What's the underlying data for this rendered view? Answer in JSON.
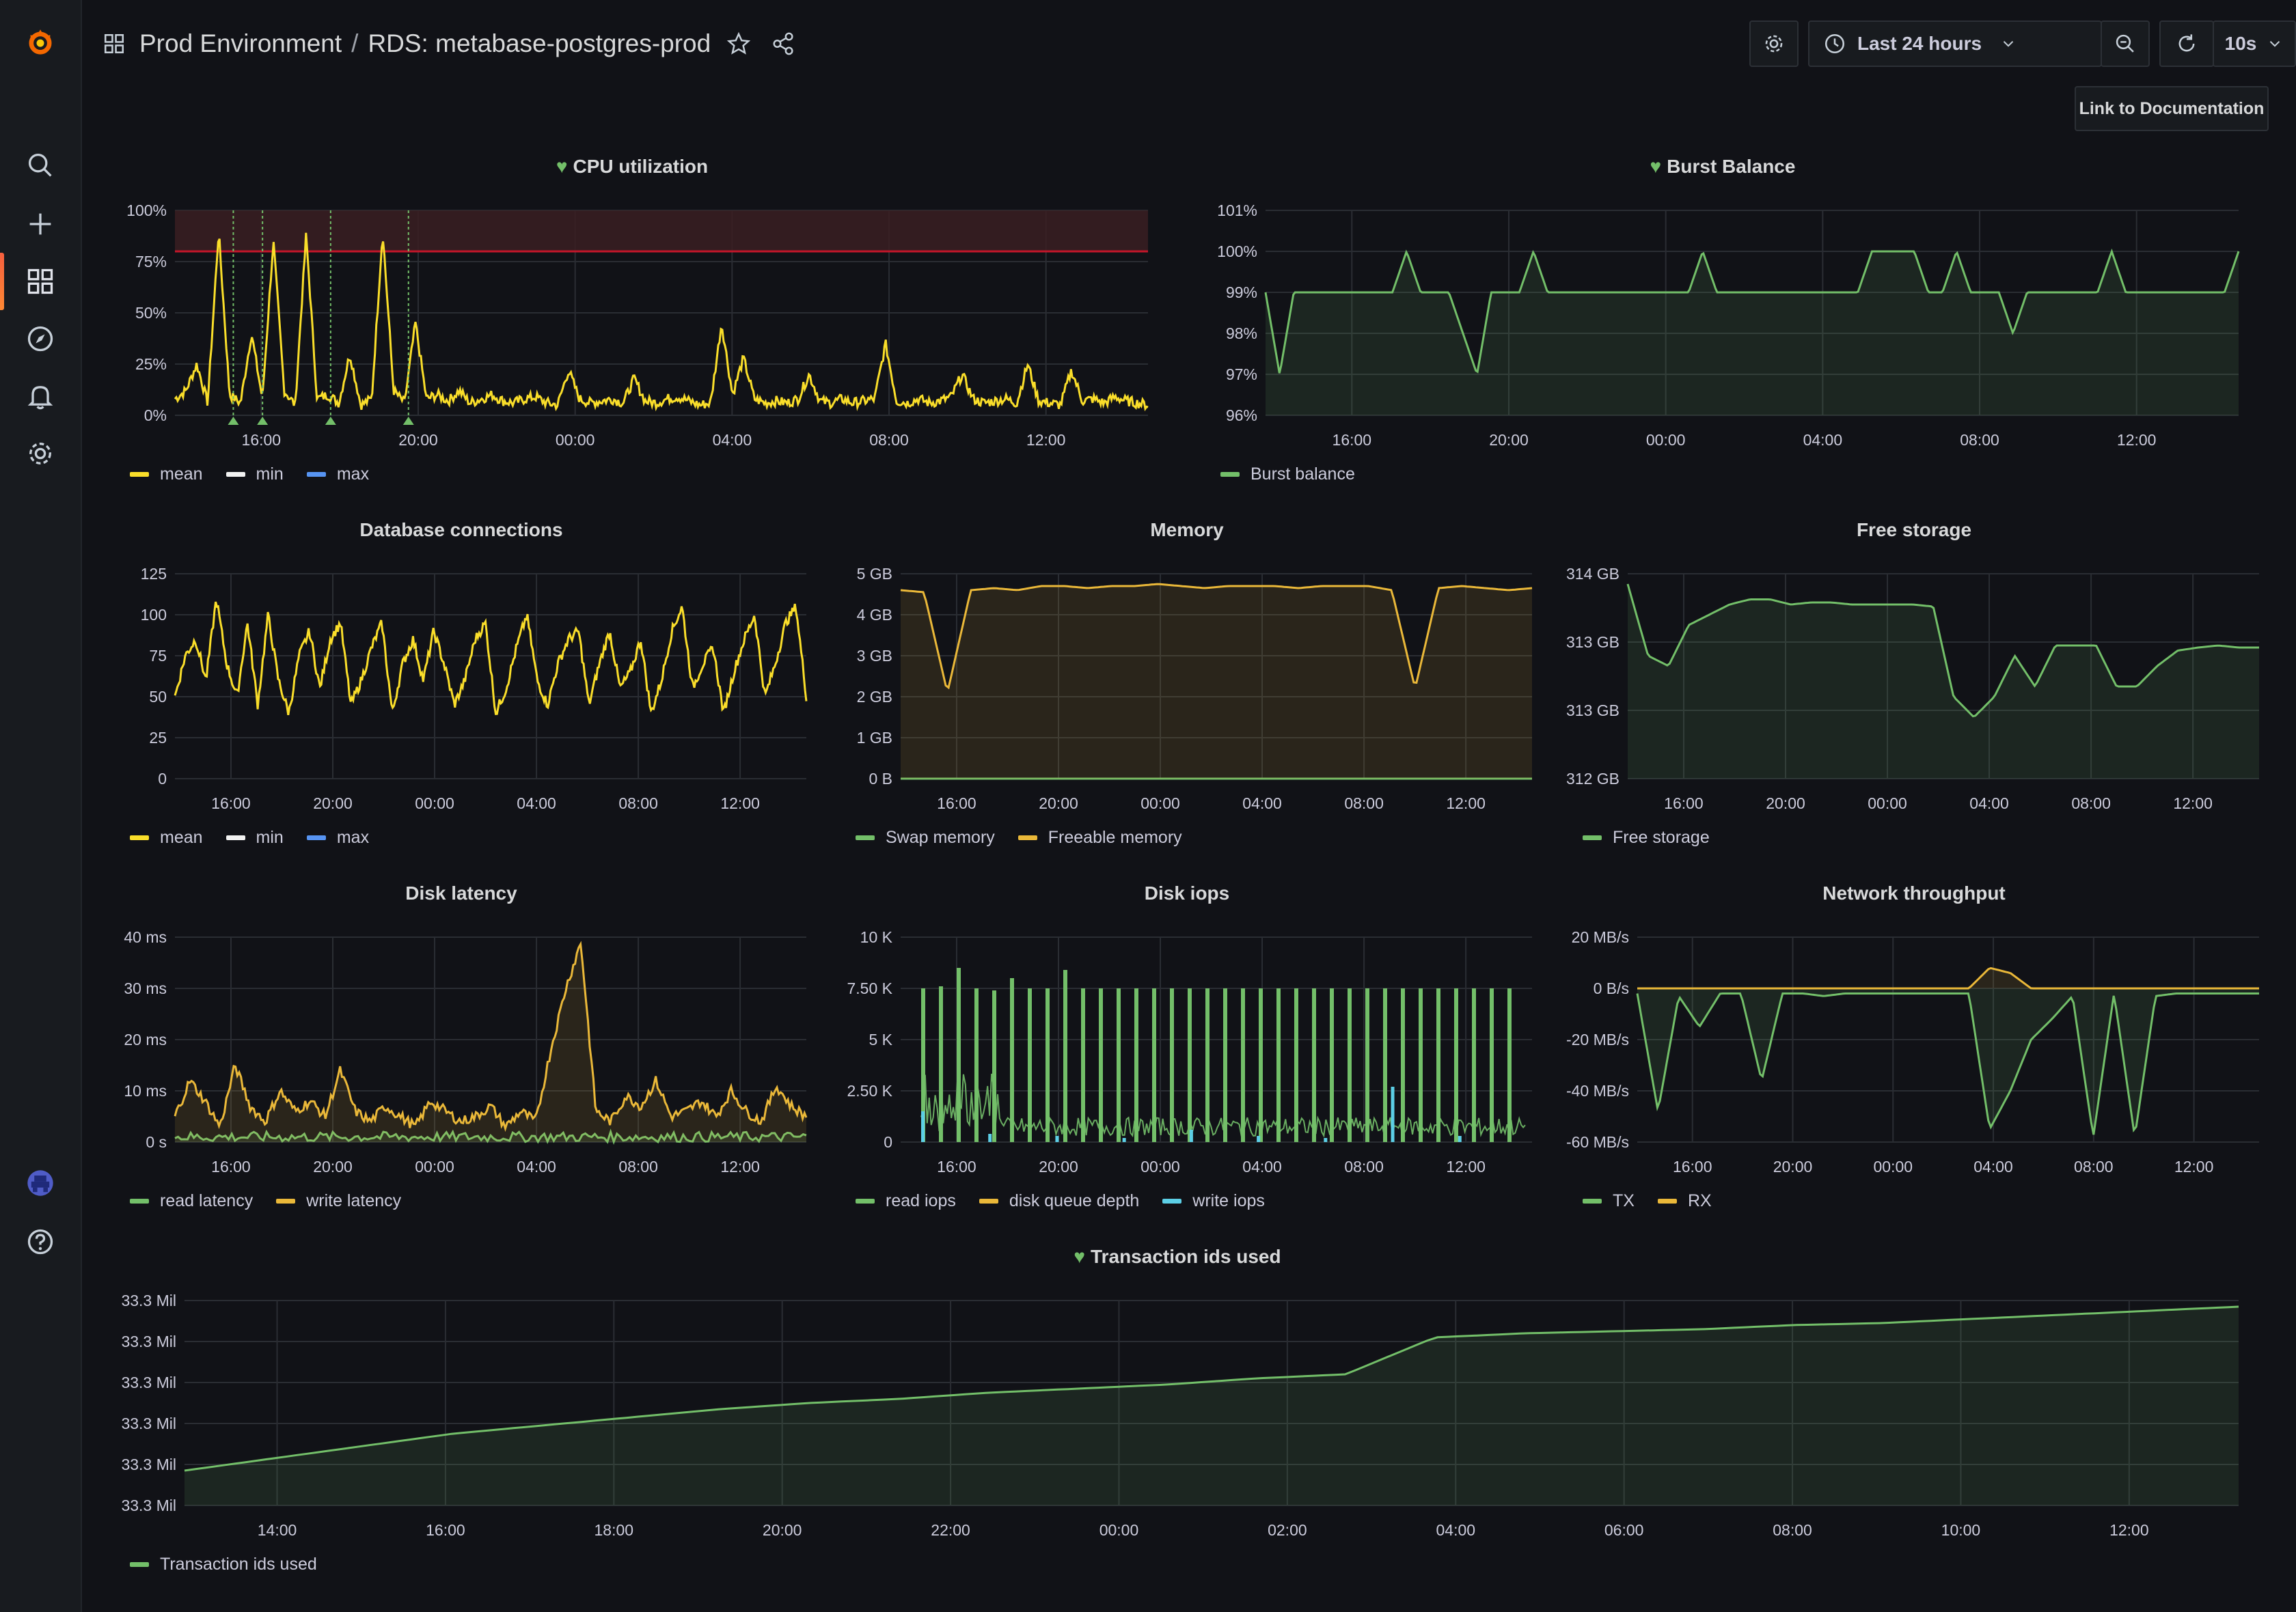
{
  "app": {
    "breadcrumb_folder": "Prod Environment",
    "breadcrumb_separator": "/",
    "dashboard_title": "RDS: metabase-postgres-prod",
    "time_range_label": "Last 24 hours",
    "refresh_interval": "10s",
    "doc_link_label": "Link to Documentation",
    "icons": [
      "grafana-logo-icon",
      "search-icon",
      "plus-icon",
      "dashboards-icon",
      "explore-icon",
      "alerting-icon",
      "config-icon",
      "user-avatar-icon",
      "help-icon",
      "dashboard-grid-icon",
      "star-icon",
      "share-icon",
      "settings-icon",
      "clock-icon",
      "chevron-down-icon",
      "zoom-out-icon",
      "refresh-icon",
      "tv-mode-icon"
    ],
    "accent_color": "#f55f3e"
  },
  "panels": {
    "cpu": {
      "title": "CPU utilization",
      "legend": [
        "mean",
        "min",
        "max"
      ]
    },
    "burst": {
      "title": "Burst Balance",
      "legend": [
        "Burst balance"
      ]
    },
    "dbconn": {
      "title": "Database connections",
      "legend": [
        "mean",
        "min",
        "max"
      ]
    },
    "memory": {
      "title": "Memory",
      "legend": [
        "Swap memory",
        "Freeable memory"
      ]
    },
    "storage": {
      "title": "Free storage",
      "legend": [
        "Free storage"
      ]
    },
    "latency": {
      "title": "Disk latency",
      "legend": [
        "read latency",
        "write latency"
      ]
    },
    "iops": {
      "title": "Disk iops",
      "legend": [
        "read iops",
        "disk queue depth",
        "write iops"
      ]
    },
    "network": {
      "title": "Network throughput",
      "legend": [
        "TX",
        "RX"
      ]
    },
    "txids": {
      "title": "Transaction ids used",
      "legend": [
        "Transaction ids used"
      ]
    }
  },
  "chart_data": [
    {
      "id": "cpu",
      "type": "line",
      "title": "CPU utilization",
      "yticks": [
        "100%",
        "75%",
        "50%",
        "25%",
        "0%"
      ],
      "xticks": [
        "16:00",
        "20:00",
        "00:00",
        "04:00",
        "08:00",
        "12:00"
      ],
      "ylim": [
        0,
        100
      ],
      "threshold": 80,
      "series_colors": [
        "#fade2a",
        "#f2f2f2",
        "#5794f2"
      ],
      "series": [
        {
          "name": "mean",
          "values": [
            8,
            12,
            25,
            6,
            90,
            10,
            6,
            40,
            8,
            85,
            12,
            5,
            88,
            8,
            10,
            6,
            30,
            5,
            8,
            90,
            12,
            6,
            45,
            8,
            10,
            7,
            12,
            6,
            8,
            10,
            7,
            6,
            8,
            9,
            6,
            5,
            22,
            8,
            6,
            7,
            8,
            6,
            18,
            7,
            6,
            8,
            9,
            7,
            5,
            6,
            45,
            10,
            28,
            8,
            6,
            7,
            6,
            8,
            20,
            7,
            6,
            8,
            6,
            7,
            8,
            35,
            7,
            6,
            8,
            6,
            7,
            9,
            20,
            8,
            6,
            7,
            8,
            6,
            25,
            7,
            6,
            5,
            22,
            7,
            8,
            6,
            9,
            7,
            6,
            5
          ]
        }
      ],
      "annotations_at": [
        3,
        4.5,
        8,
        12
      ]
    },
    {
      "id": "burst",
      "type": "area",
      "title": "Burst Balance",
      "yticks": [
        "101%",
        "100%",
        "99%",
        "98%",
        "97%",
        "96%"
      ],
      "xticks": [
        "16:00",
        "20:00",
        "00:00",
        "04:00",
        "08:00",
        "12:00"
      ],
      "ylim": [
        96,
        101
      ],
      "series_colors": [
        "#73bf69"
      ],
      "series": [
        {
          "name": "Burst balance",
          "values": [
            99,
            97,
            99,
            99,
            99,
            99,
            99,
            99,
            99,
            99,
            100,
            99,
            99,
            99,
            98,
            97,
            99,
            99,
            99,
            100,
            99,
            99,
            99,
            99,
            99,
            99,
            99,
            99,
            99,
            99,
            99,
            100,
            99,
            99,
            99,
            99,
            99,
            99,
            99,
            99,
            99,
            99,
            99,
            100,
            100,
            100,
            100,
            99,
            99,
            100,
            99,
            99,
            99,
            98,
            99,
            99,
            99,
            99,
            99,
            99,
            100,
            99,
            99,
            99,
            99,
            99,
            99,
            99,
            99,
            100
          ]
        }
      ]
    },
    {
      "id": "dbconn",
      "type": "line",
      "title": "Database connections",
      "yticks": [
        "125",
        "100",
        "75",
        "50",
        "25",
        "0"
      ],
      "xticks": [
        "16:00",
        "20:00",
        "00:00",
        "04:00",
        "08:00",
        "12:00"
      ],
      "ylim": [
        0,
        125
      ],
      "series_colors": [
        "#fade2a",
        "#f2f2f2",
        "#5794f2"
      ],
      "series": [
        {
          "name": "mean",
          "values": [
            50,
            75,
            85,
            60,
            110,
            70,
            50,
            95,
            45,
            100,
            60,
            40,
            75,
            90,
            55,
            85,
            95,
            45,
            60,
            80,
            95,
            40,
            70,
            85,
            60,
            90,
            70,
            45,
            60,
            85,
            95,
            40,
            55,
            80,
            100,
            60,
            45,
            70,
            85,
            90,
            45,
            70,
            90,
            55,
            65,
            85,
            40,
            60,
            90,
            105,
            55,
            70,
            80,
            40,
            65,
            85,
            100,
            50,
            70,
            95,
            105,
            50
          ]
        }
      ]
    },
    {
      "id": "memory",
      "type": "area",
      "title": "Memory",
      "yticks": [
        "5 GB",
        "4 GB",
        "3 GB",
        "2 GB",
        "1 GB",
        "0 B"
      ],
      "xticks": [
        "16:00",
        "20:00",
        "00:00",
        "04:00",
        "08:00",
        "12:00"
      ],
      "ylim": [
        0,
        5
      ],
      "series_colors": [
        "#73bf69",
        "#eab839"
      ],
      "series": [
        {
          "name": "Swap memory",
          "values": [
            0,
            0,
            0,
            0,
            0,
            0,
            0,
            0,
            0,
            0
          ]
        },
        {
          "name": "Freeable memory",
          "values": [
            4.6,
            4.55,
            2.1,
            4.6,
            4.65,
            4.6,
            4.7,
            4.7,
            4.65,
            4.7,
            4.7,
            4.75,
            4.7,
            4.65,
            4.7,
            4.7,
            4.7,
            4.65,
            4.7,
            4.7,
            4.7,
            4.6,
            2.2,
            4.65,
            4.7,
            4.65,
            4.6,
            4.65
          ]
        }
      ]
    },
    {
      "id": "storage",
      "type": "area",
      "title": "Free storage",
      "yticks": [
        "314 GB",
        "313 GB",
        "313 GB",
        "312 GB"
      ],
      "xticks": [
        "16:00",
        "20:00",
        "00:00",
        "04:00",
        "08:00",
        "12:00"
      ],
      "ylim": [
        312,
        314.0
      ],
      "series_colors": [
        "#73bf69"
      ],
      "series": [
        {
          "name": "Free storage",
          "values": [
            313.9,
            313.2,
            313.1,
            313.5,
            313.6,
            313.7,
            313.75,
            313.75,
            313.7,
            313.72,
            313.72,
            313.7,
            313.7,
            313.7,
            313.7,
            313.68,
            312.8,
            312.6,
            312.8,
            313.2,
            312.9,
            313.3,
            313.3,
            313.3,
            312.9,
            312.9,
            313.1,
            313.25,
            313.28,
            313.3,
            313.28,
            313.28
          ]
        }
      ]
    },
    {
      "id": "latency",
      "type": "area",
      "title": "Disk latency",
      "yticks": [
        "40 ms",
        "30 ms",
        "20 ms",
        "10 ms",
        "0 s"
      ],
      "xticks": [
        "16:00",
        "20:00",
        "00:00",
        "04:00",
        "08:00",
        "12:00"
      ],
      "ylim": [
        0,
        40
      ],
      "series_colors": [
        "#73bf69",
        "#eab839"
      ],
      "series": [
        {
          "name": "read latency",
          "values": [
            1,
            1,
            1,
            1,
            1,
            1,
            1,
            1,
            1,
            1
          ]
        },
        {
          "name": "write latency",
          "values": [
            5,
            12,
            8,
            3,
            15,
            7,
            4,
            10,
            6,
            8,
            5,
            14,
            6,
            4,
            7,
            5,
            3,
            8,
            6,
            4,
            5,
            7,
            3,
            6,
            4,
            18,
            30,
            39,
            6,
            4,
            9,
            7,
            12,
            5,
            6,
            8,
            5,
            10,
            6,
            4,
            11,
            7,
            5
          ]
        }
      ]
    },
    {
      "id": "iops",
      "type": "bar",
      "title": "Disk iops",
      "yticks": [
        "10 K",
        "7.50 K",
        "5 K",
        "2.50 K",
        "0"
      ],
      "xticks": [
        "16:00",
        "20:00",
        "00:00",
        "04:00",
        "08:00",
        "12:00"
      ],
      "ylim": [
        0,
        10000
      ],
      "series_colors": [
        "#73bf69",
        "#eab839",
        "#5ccfe6"
      ],
      "series": [
        {
          "name": "read iops",
          "values": [
            7500,
            7600,
            8500,
            7500,
            7400,
            8000,
            7500,
            7500,
            8400,
            7500,
            7500,
            7500,
            7500,
            7500,
            7500,
            7500,
            7500,
            7500,
            7500,
            7500,
            7500,
            7500,
            7500,
            7500,
            7500,
            7500,
            7500,
            7500,
            7500,
            7500,
            7500,
            7500,
            7500,
            7500
          ]
        },
        {
          "name": "disk queue depth",
          "values": [
            0,
            0,
            0,
            0,
            0
          ]
        },
        {
          "name": "write iops",
          "values": [
            1500,
            400,
            300,
            200,
            600,
            300,
            200,
            2700,
            300
          ]
        }
      ]
    },
    {
      "id": "network",
      "type": "area",
      "title": "Network throughput",
      "yticks": [
        "20 MB/s",
        "0 B/s",
        "-20 MB/s",
        "-40 MB/s",
        "-60 MB/s"
      ],
      "xticks": [
        "16:00",
        "20:00",
        "00:00",
        "04:00",
        "08:00",
        "12:00"
      ],
      "ylim": [
        -60,
        20
      ],
      "series_colors": [
        "#73bf69",
        "#eab839"
      ],
      "series": [
        {
          "name": "TX",
          "values": [
            -2,
            -48,
            -3,
            -15,
            -2,
            -2,
            -36,
            -2,
            -2,
            -3,
            -2,
            -2,
            -2,
            -2,
            -2,
            -2,
            -2,
            -55,
            -40,
            -20,
            -12,
            -3,
            -58,
            -2,
            -58,
            -3,
            -2,
            -2,
            -2,
            -2,
            -2
          ]
        },
        {
          "name": "RX",
          "values": [
            0,
            0,
            0,
            0,
            0,
            0,
            0,
            0,
            0,
            0,
            0,
            0,
            0,
            0,
            0,
            0,
            0,
            8,
            6,
            0,
            0,
            0,
            0,
            0,
            0,
            0,
            0,
            0,
            0,
            0,
            0
          ]
        }
      ]
    },
    {
      "id": "txids",
      "type": "area",
      "title": "Transaction ids used",
      "yticks": [
        "33.3 Mil",
        "33.3 Mil",
        "33.3 Mil",
        "33.3 Mil",
        "33.3 Mil",
        "33.3 Mil"
      ],
      "xticks": [
        "14:00",
        "16:00",
        "18:00",
        "20:00",
        "22:00",
        "00:00",
        "02:00",
        "04:00",
        "06:00",
        "08:00",
        "10:00",
        "12:00"
      ],
      "ylim": [
        0,
        1
      ],
      "series_colors": [
        "#73bf69"
      ],
      "series": [
        {
          "name": "Transaction ids used",
          "values": [
            0.17,
            0.23,
            0.29,
            0.35,
            0.39,
            0.43,
            0.47,
            0.5,
            0.52,
            0.55,
            0.57,
            0.59,
            0.62,
            0.64,
            0.82,
            0.84,
            0.85,
            0.86,
            0.88,
            0.89,
            0.91,
            0.93,
            0.95,
            0.97
          ]
        }
      ]
    }
  ]
}
